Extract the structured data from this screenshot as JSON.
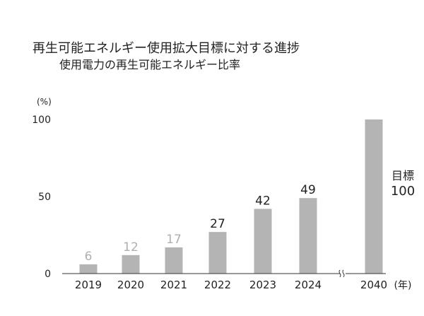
{
  "chart_data": {
    "type": "bar",
    "title": "再生可能エネルギー使用拡大目標に対する進捗",
    "subtitle": "使用電力の再生可能エネルギー比率",
    "y_unit": "(%)",
    "x_unit": "(年)",
    "ylim": [
      0,
      100
    ],
    "yticks": [
      0,
      50,
      100
    ],
    "categories": [
      "2019",
      "2020",
      "2021",
      "2022",
      "2023",
      "2024",
      "2040"
    ],
    "values": [
      6,
      12,
      17,
      27,
      42,
      49,
      100
    ],
    "data_labels": [
      "6",
      "12",
      "17",
      "27",
      "42",
      "49",
      ""
    ],
    "axis_break_before": "2040",
    "target": {
      "category": "2040",
      "label_line1": "目標",
      "label_line2": "100"
    },
    "colors": {
      "bar": "#b4b4b4",
      "axis": "#333333",
      "label_dark": "#222222",
      "label_light": "#b0b0b0",
      "tick_text": "#222222"
    },
    "light_label_categories": [
      "2019",
      "2020",
      "2021"
    ],
    "grid": false,
    "legend": "none"
  }
}
